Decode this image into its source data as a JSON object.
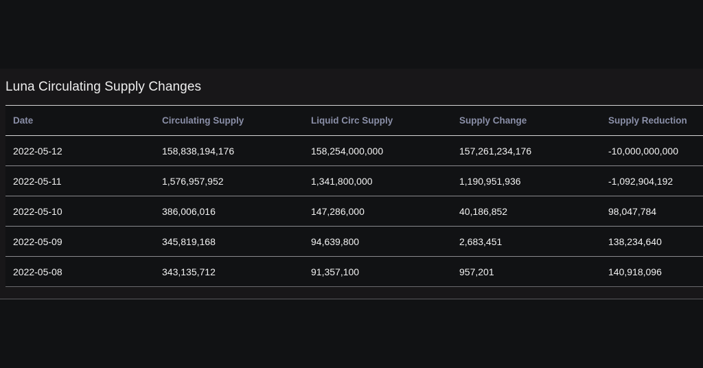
{
  "panel": {
    "title": "Luna Circulating Supply Changes"
  },
  "table": {
    "columns": [
      "Date",
      "Circulating Supply",
      "Liquid Circ Supply",
      "Supply Change",
      "Supply Reduction"
    ],
    "rows": [
      [
        "2022-05-12",
        "158,838,194,176",
        "158,254,000,000",
        "157,261,234,176",
        "-10,000,000,000"
      ],
      [
        "2022-05-11",
        "1,576,957,952",
        "1,341,800,000",
        "1,190,951,936",
        "-1,092,904,192"
      ],
      [
        "2022-05-10",
        "386,006,016",
        "147,286,000",
        "40,186,852",
        "98,047,784"
      ],
      [
        "2022-05-09",
        "345,819,168",
        "94,639,800",
        "2,683,451",
        "138,234,640"
      ],
      [
        "2022-05-08",
        "343,135,712",
        "91,357,100",
        "957,201",
        "140,918,096"
      ]
    ]
  },
  "colors": {
    "background": "#111214",
    "panel": "#181719",
    "header_text": "#8a8fa8",
    "cell_text": "#f2f2f2"
  }
}
